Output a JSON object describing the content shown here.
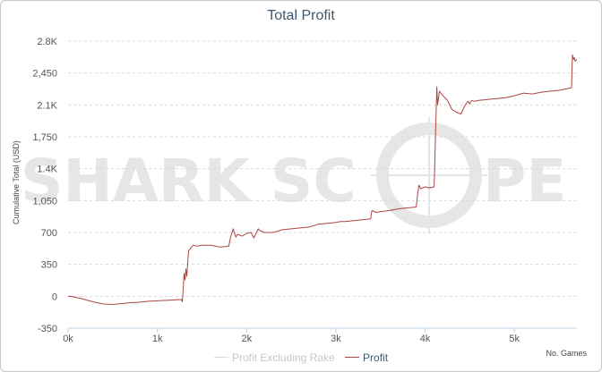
{
  "chart_data": {
    "type": "line",
    "title": "Total Profit",
    "ylabel": "Cumulative Total (USD)",
    "xlabel": "No. Games",
    "xlim": [
      0,
      5700
    ],
    "ylim": [
      -350,
      2800
    ],
    "x_ticks": [
      {
        "value": 0,
        "label": "0k"
      },
      {
        "value": 1000,
        "label": "1k"
      },
      {
        "value": 2000,
        "label": "2k"
      },
      {
        "value": 3000,
        "label": "3k"
      },
      {
        "value": 4000,
        "label": "4k"
      },
      {
        "value": 5000,
        "label": "5k"
      }
    ],
    "y_ticks": [
      {
        "value": -350,
        "label": "-350"
      },
      {
        "value": 0,
        "label": "0"
      },
      {
        "value": 350,
        "label": "350"
      },
      {
        "value": 700,
        "label": "700"
      },
      {
        "value": 1050,
        "label": "1,050"
      },
      {
        "value": 1400,
        "label": "1.4K"
      },
      {
        "value": 1750,
        "label": "1,750"
      },
      {
        "value": 2100,
        "label": "2.1K"
      },
      {
        "value": 2450,
        "label": "2,450"
      },
      {
        "value": 2800,
        "label": "2.8K"
      }
    ],
    "grid": true,
    "legend_position": "bottom",
    "series": [
      {
        "name": "Profit Excluding Rake",
        "visible": false,
        "color": "#d8d8d8",
        "x": [],
        "y": []
      },
      {
        "name": "Profit",
        "visible": true,
        "color": "#aa4643",
        "x": [
          0,
          50,
          100,
          150,
          200,
          300,
          400,
          500,
          600,
          700,
          800,
          900,
          1000,
          1100,
          1200,
          1270,
          1280,
          1300,
          1310,
          1320,
          1330,
          1350,
          1400,
          1450,
          1500,
          1600,
          1700,
          1800,
          1820,
          1850,
          1860,
          1880,
          1900,
          1950,
          2000,
          2050,
          2080,
          2100,
          2130,
          2150,
          2200,
          2300,
          2400,
          2500,
          2600,
          2700,
          2800,
          2900,
          3000,
          3050,
          3100,
          3200,
          3300,
          3390,
          3400,
          3410,
          3450,
          3500,
          3600,
          3700,
          3800,
          3900,
          3920,
          3930,
          3950,
          4000,
          4050,
          4100,
          4130,
          4140,
          4160,
          4200,
          4250,
          4300,
          4350,
          4400,
          4450,
          4480,
          4500,
          4520,
          4550,
          4600,
          4700,
          4800,
          4900,
          5000,
          5100,
          5200,
          5300,
          5400,
          5500,
          5600,
          5640,
          5650,
          5660,
          5670,
          5680,
          5700
        ],
        "y": [
          0,
          -5,
          -15,
          -25,
          -40,
          -65,
          -85,
          -90,
          -80,
          -70,
          -65,
          -55,
          -50,
          -45,
          -40,
          -35,
          -60,
          250,
          180,
          300,
          220,
          500,
          560,
          550,
          560,
          560,
          540,
          550,
          650,
          740,
          700,
          650,
          680,
          660,
          690,
          700,
          640,
          680,
          740,
          720,
          700,
          700,
          730,
          740,
          750,
          760,
          790,
          800,
          810,
          820,
          820,
          830,
          840,
          850,
          930,
          940,
          920,
          930,
          940,
          960,
          970,
          980,
          1150,
          1220,
          1180,
          1200,
          1190,
          1200,
          2300,
          2100,
          2250,
          2200,
          2150,
          2050,
          2020,
          2000,
          2100,
          2140,
          2110,
          2150,
          2140,
          2150,
          2160,
          2170,
          2180,
          2200,
          2230,
          2220,
          2240,
          2250,
          2260,
          2280,
          2290,
          2650,
          2600,
          2620,
          2580,
          2600
        ]
      }
    ]
  },
  "watermark": {
    "left": "SHARK SC",
    "right": "PE"
  }
}
